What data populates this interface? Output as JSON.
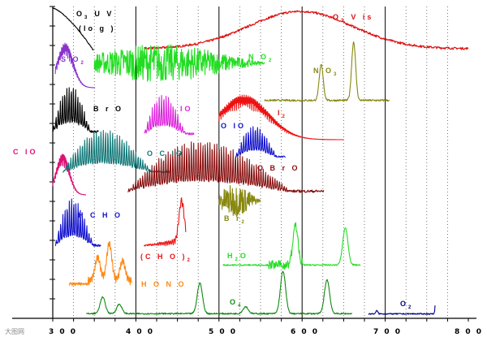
{
  "chart_data": {
    "type": "line",
    "title": "",
    "xlabel": "",
    "ylabel": "",
    "xlim": [
      300,
      800
    ],
    "x_ticks": [
      300,
      400,
      500,
      600,
      700,
      800
    ],
    "grid": {
      "vertical_solid_every": 50,
      "vertical_dotted_every": 25,
      "horizontal_tick_marks_left": true
    },
    "series": [
      {
        "name": "O3 UV (log)",
        "color": "#000000",
        "kind": "decay",
        "x_range": [
          300,
          349
        ]
      },
      {
        "name": "O3 Vis",
        "color": "#dd1111",
        "kind": "hump",
        "x_range": [
          410,
          800
        ],
        "center": 598,
        "width": 90
      },
      {
        "name": "SO2",
        "color": "#8833cc",
        "kind": "dense_hump",
        "x_range": [
          303,
          351
        ],
        "center": 315
      },
      {
        "name": "NO2",
        "color": "#22dd22",
        "kind": "noise",
        "x_range": [
          350,
          555
        ]
      },
      {
        "name": "NO3",
        "color": "#888811",
        "kind": "peaks",
        "x_range": [
          555,
          705
        ],
        "peaks": [
          623,
          662
        ]
      },
      {
        "name": "BrO",
        "color": "#000000",
        "kind": "comb",
        "x_range": [
          300,
          355
        ]
      },
      {
        "name": "IO",
        "color": "#dd22dd",
        "kind": "comb",
        "x_range": [
          410,
          470
        ]
      },
      {
        "name": "I2",
        "color": "#ee1111",
        "kind": "dense_hump",
        "x_range": [
          500,
          650
        ],
        "center": 530
      },
      {
        "name": "OIO",
        "color": "#1111cc",
        "kind": "comb",
        "x_range": [
          520,
          580
        ]
      },
      {
        "name": "ClO",
        "color": "#dd1177",
        "kind": "dense_hump",
        "x_range": [
          300,
          340
        ],
        "center": 312
      },
      {
        "name": "OClO",
        "color": "#117777",
        "kind": "comb",
        "x_range": [
          312,
          442
        ]
      },
      {
        "name": "OBrO",
        "color": "#881111",
        "kind": "comb",
        "x_range": [
          390,
          626
        ]
      },
      {
        "name": "HCHO",
        "color": "#1111cc",
        "kind": "comb",
        "x_range": [
          303,
          358
        ]
      },
      {
        "name": "(CHO)2",
        "color": "#ee1111",
        "kind": "peaks",
        "x_range": [
          410,
          460
        ],
        "peaks": [
          455
        ]
      },
      {
        "name": "Br2",
        "color": "#888811",
        "kind": "noise",
        "x_range": [
          500,
          550
        ]
      },
      {
        "name": "H2O",
        "color": "#22dd22",
        "kind": "peaks",
        "x_range": [
          505,
          670
        ],
        "peaks": [
          592,
          652
        ]
      },
      {
        "name": "HONO",
        "color": "#ff8811",
        "kind": "peaks",
        "x_range": [
          320,
          395
        ],
        "peaks": [
          354,
          368,
          384
        ]
      },
      {
        "name": "O4",
        "color": "#118811",
        "kind": "peaks",
        "x_range": [
          340,
          660
        ],
        "peaks": [
          360,
          380,
          477,
          532,
          577,
          630
        ]
      },
      {
        "name": "O2",
        "color": "#000088",
        "kind": "peaks",
        "x_range": [
          680,
          760
        ],
        "peaks": [
          690,
          762
        ]
      }
    ]
  },
  "labels": {
    "o3uv": [
      "O",
      "3",
      "U V",
      "(lo g )"
    ],
    "o3vis": [
      "O",
      "3",
      "V is"
    ],
    "so2": [
      "S O",
      "2"
    ],
    "no2": [
      "N O",
      "2"
    ],
    "no3": [
      "N O",
      "3"
    ],
    "bro": "B r O",
    "io": "IO",
    "i2": [
      "I",
      "2"
    ],
    "oio": "O IO",
    "clo": "C lO",
    "oclo": "O C lO",
    "obro": "O B r O",
    "hcho": "H C H O",
    "cho2": [
      "(C H O )",
      "2"
    ],
    "br2": [
      "B r",
      "2"
    ],
    "h2o": [
      "H",
      "2",
      "O"
    ],
    "hono": "H O N O",
    "o4": [
      "O",
      "4"
    ],
    "o2": [
      "O",
      "2"
    ]
  },
  "ticks": [
    "3 0 0",
    "4 0 0",
    "5 0 0",
    "6 0 0",
    "7 0 0",
    "8 0 0"
  ],
  "watermark": "大图网"
}
